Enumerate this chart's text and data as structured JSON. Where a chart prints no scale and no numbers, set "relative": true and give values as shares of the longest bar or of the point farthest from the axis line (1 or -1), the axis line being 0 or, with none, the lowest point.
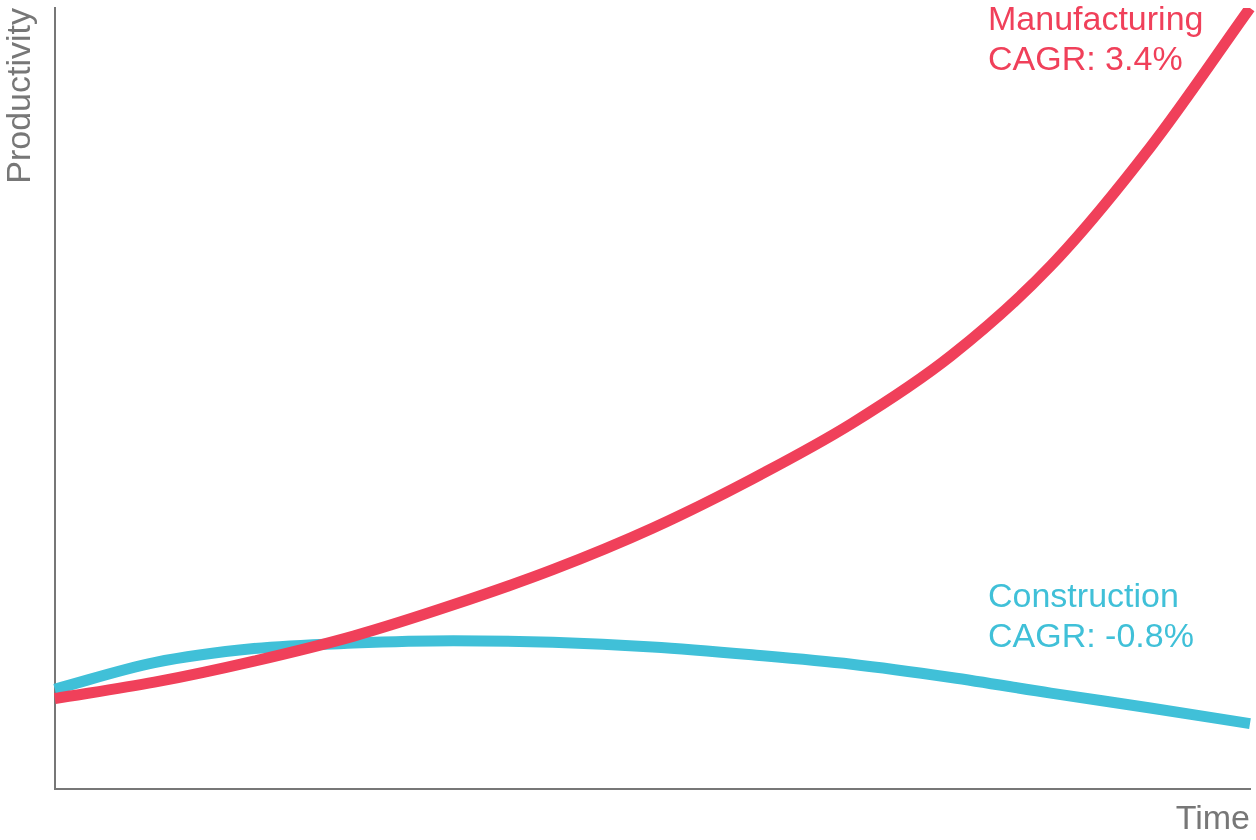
{
  "chart_data": {
    "type": "line",
    "relative": true,
    "xlabel": "Time",
    "ylabel": "Productivity",
    "categories": [
      null,
      null,
      null,
      null,
      null,
      null,
      null,
      null,
      null,
      null,
      null,
      null,
      null
    ],
    "series": [
      {
        "name": "Manufacturing",
        "color": "#f0405a",
        "values": [
          0.116,
          0.137,
          0.164,
          0.196,
          0.236,
          0.281,
          0.334,
          0.397,
          0.468,
          0.555,
          0.67,
          0.822,
          1.0
        ]
      },
      {
        "name": "Construction",
        "color": "#40c0d8",
        "values": [
          0.128,
          0.162,
          0.18,
          0.187,
          0.19,
          0.188,
          0.182,
          0.172,
          0.16,
          0.143,
          0.123,
          0.104,
          0.084
        ]
      }
    ],
    "annotations": [
      "CAGR: 3.4%",
      "CAGR: -0.8%"
    ],
    "grid": false,
    "legend": false,
    "marker": "none",
    "line_style": "solid"
  }
}
